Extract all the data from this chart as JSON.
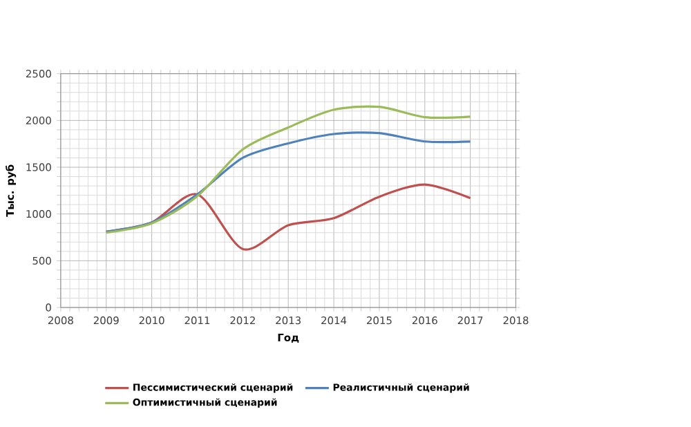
{
  "chart_data": {
    "type": "line",
    "xlabel": "Год",
    "ylabel": "Тыс. руб",
    "x": [
      2009,
      2010,
      2011,
      2012,
      2013,
      2014,
      2015,
      2016,
      2017
    ],
    "series": [
      {
        "name": "Пессимистический сценарий",
        "color": "#c0504d",
        "values": [
          810,
          910,
          1210,
          625,
          880,
          955,
          1185,
          1315,
          1170
        ]
      },
      {
        "name": "Реалистичный сценарий",
        "color": "#4f81bd",
        "values": [
          810,
          910,
          1210,
          1600,
          1755,
          1855,
          1865,
          1775,
          1775
        ]
      },
      {
        "name": "Оптимистичный сценарий",
        "color": "#9bbb59",
        "values": [
          800,
          900,
          1190,
          1690,
          1925,
          2115,
          2145,
          2035,
          2040
        ]
      }
    ],
    "xlim": [
      2008,
      2018
    ],
    "xticks": [
      2008,
      2009,
      2010,
      2011,
      2012,
      2013,
      2014,
      2015,
      2016,
      2017,
      2018
    ],
    "ylim": [
      0,
      2500
    ],
    "yticks": [
      0,
      500,
      1000,
      1500,
      2000,
      2500
    ],
    "grid": true,
    "legend": "bottom",
    "marker": "none",
    "line_style": "solid"
  }
}
